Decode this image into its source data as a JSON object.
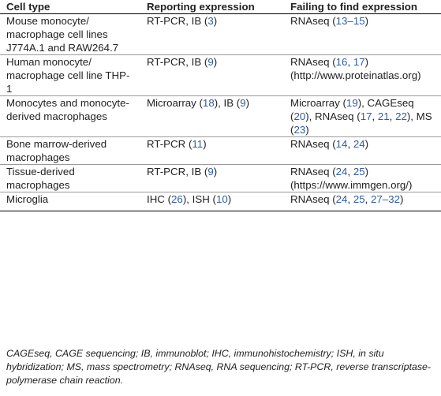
{
  "table": {
    "headers": [
      "Cell type",
      "Reporting expression",
      "Failing to find expression"
    ],
    "rows": [
      {
        "cell_type": "Mouse monocyte/ macrophage cell lines J774A.1 and RAW264.7",
        "reporting": [
          {
            "t": "RT-PCR, IB ("
          },
          {
            "t": "3",
            "ref": true
          },
          {
            "t": ")"
          }
        ],
        "failing": [
          {
            "t": "RNAseq ("
          },
          {
            "t": "13–15",
            "ref": true
          },
          {
            "t": ")"
          }
        ]
      },
      {
        "cell_type": "Human monocyte/ macrophage cell line THP-1",
        "reporting": [
          {
            "t": "RT-PCR, IB ("
          },
          {
            "t": "9",
            "ref": true
          },
          {
            "t": ")"
          }
        ],
        "failing": [
          {
            "t": "RNAseq ("
          },
          {
            "t": "16",
            "ref": true
          },
          {
            "t": ", "
          },
          {
            "t": "17",
            "ref": true
          },
          {
            "t": ") (http://www.proteinatlas.org)"
          }
        ]
      },
      {
        "cell_type": "Monocytes and monocyte-derived macrophages",
        "reporting": [
          {
            "t": "Microarray ("
          },
          {
            "t": "18",
            "ref": true
          },
          {
            "t": "), IB ("
          },
          {
            "t": "9",
            "ref": true
          },
          {
            "t": ")"
          }
        ],
        "failing": [
          {
            "t": "Microarray ("
          },
          {
            "t": "19",
            "ref": true
          },
          {
            "t": "), CAGEseq ("
          },
          {
            "t": "20",
            "ref": true
          },
          {
            "t": "), RNAseq ("
          },
          {
            "t": "17",
            "ref": true
          },
          {
            "t": ", "
          },
          {
            "t": "21",
            "ref": true
          },
          {
            "t": ", "
          },
          {
            "t": "22",
            "ref": true
          },
          {
            "t": "), MS ("
          },
          {
            "t": "23",
            "ref": true
          },
          {
            "t": ")"
          }
        ]
      },
      {
        "cell_type": "Bone marrow-derived macrophages",
        "reporting": [
          {
            "t": "RT-PCR ("
          },
          {
            "t": "11",
            "ref": true
          },
          {
            "t": ")"
          }
        ],
        "failing": [
          {
            "t": "RNAseq ("
          },
          {
            "t": "14",
            "ref": true
          },
          {
            "t": ", "
          },
          {
            "t": "24",
            "ref": true
          },
          {
            "t": ")"
          }
        ]
      },
      {
        "cell_type": "Tissue-derived macrophages",
        "reporting": [
          {
            "t": "RT-PCR, IB ("
          },
          {
            "t": "9",
            "ref": true
          },
          {
            "t": ")"
          }
        ],
        "failing": [
          {
            "t": "RNAseq ("
          },
          {
            "t": "24",
            "ref": true
          },
          {
            "t": ", "
          },
          {
            "t": "25",
            "ref": true
          },
          {
            "t": ") (https://www.immgen.org/)"
          }
        ]
      },
      {
        "cell_type": "Microglia",
        "reporting": [
          {
            "t": "IHC ("
          },
          {
            "t": "26",
            "ref": true
          },
          {
            "t": "), ISH ("
          },
          {
            "t": "10",
            "ref": true
          },
          {
            "t": ")"
          }
        ],
        "failing": [
          {
            "t": "RNAseq ("
          },
          {
            "t": "24",
            "ref": true
          },
          {
            "t": ", "
          },
          {
            "t": "25",
            "ref": true
          },
          {
            "t": ", "
          },
          {
            "t": "27–32",
            "ref": true
          },
          {
            "t": ")"
          }
        ]
      }
    ]
  },
  "footnote": "CAGEseq, CAGE sequencing; IB, immunoblot; IHC, immunohistochemistry; ISH, in situ hybridization; MS, mass spectrometry; RNAseq, RNA sequencing; RT-PCR, reverse transcriptase-polymerase chain reaction.",
  "colors": {
    "reference_link": "#2e5d9a",
    "text": "#222222"
  }
}
